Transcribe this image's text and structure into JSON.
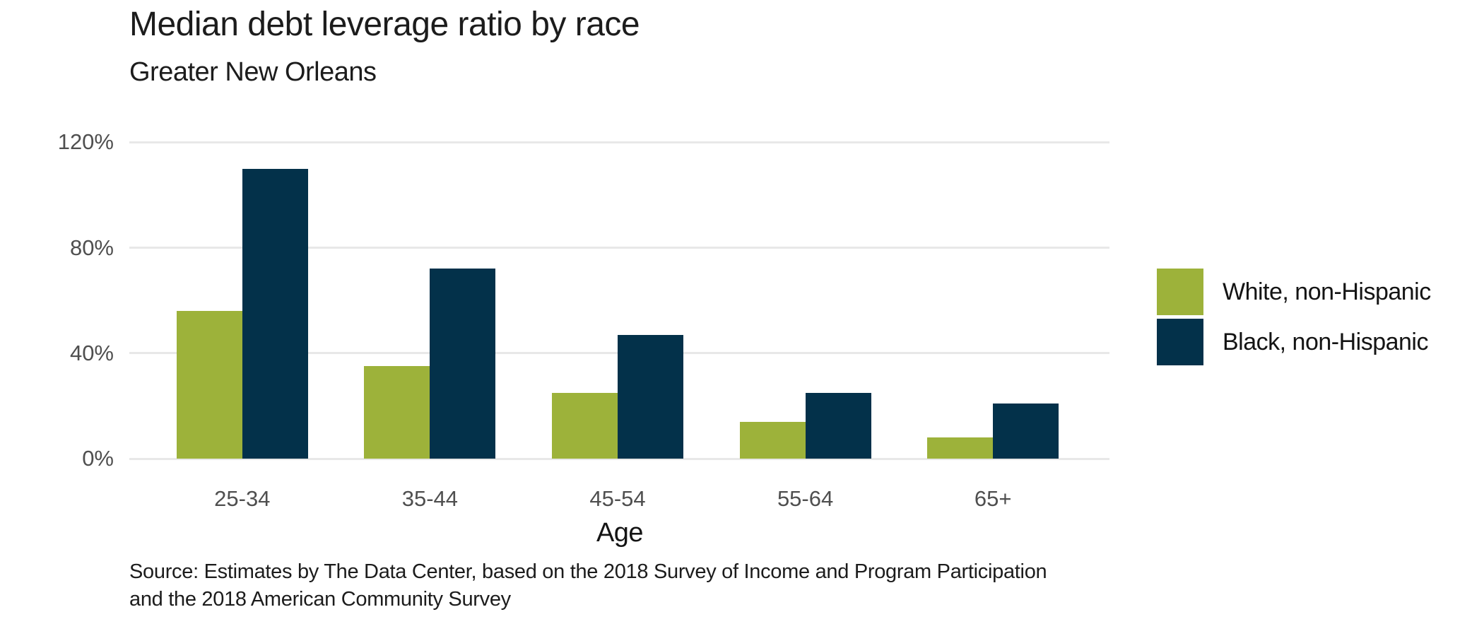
{
  "chart": {
    "title": "Median debt leverage ratio by race",
    "subtitle": "Greater New Orleans",
    "xlabel": "Age",
    "source_line1": "Source: Estimates by The Data Center, based on the 2018 Survey of Income and Program Participation",
    "source_line2": "and the 2018 American Community Survey"
  },
  "colors": {
    "white_series": "#9db23a",
    "black_series": "#03314a",
    "gridline": "#e8e8e8",
    "tick_text": "#4f4f4f",
    "heading_text": "#1c1c1c"
  },
  "chart_data": {
    "type": "bar",
    "title": "Median debt leverage ratio by race",
    "subtitle": "Greater New Orleans",
    "xlabel": "Age",
    "ylabel": "",
    "categories": [
      "25-34",
      "35-44",
      "45-54",
      "55-64",
      "65+"
    ],
    "series": [
      {
        "name": "White, non-Hispanic",
        "color": "#9db23a",
        "values": [
          56,
          35,
          25,
          14,
          8
        ]
      },
      {
        "name": "Black, non-Hispanic",
        "color": "#03314a",
        "values": [
          110,
          72,
          47,
          25,
          21
        ]
      }
    ],
    "y_ticks": [
      0,
      40,
      80,
      120
    ],
    "y_tick_suffix": "%",
    "ylim": [
      0,
      134
    ],
    "grid": "horizontal",
    "legend_position": "right",
    "source": "Source: Estimates by The Data Center, based on the 2018 Survey of Income and Program Participation and the 2018 American Community Survey"
  }
}
